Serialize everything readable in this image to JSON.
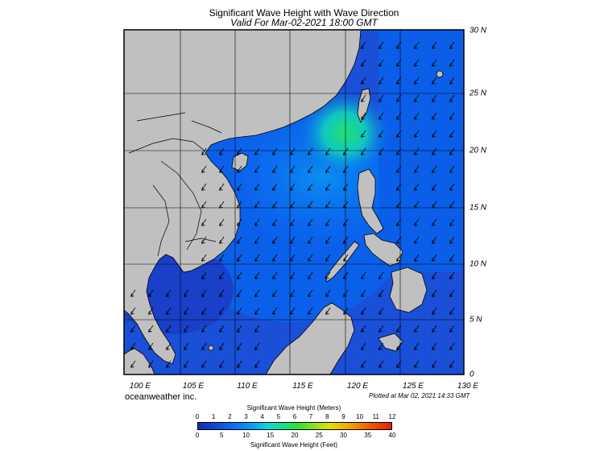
{
  "title": "Significant Wave Height with Wave Direction",
  "subtitle": "Valid For Mar-02-2021 18:00 GMT",
  "lon_labels": [
    "100 E",
    "105 E",
    "110 E",
    "115 E",
    "120 E",
    "125 E",
    "130 E"
  ],
  "lat_labels": [
    "30 N",
    "25 N",
    "20 N",
    "15 N",
    "10 N",
    "5 N",
    "0"
  ],
  "company": "oceanweather inc.",
  "plotted": "Plotted at Mar 02, 2021 14:33 GMT",
  "colorbar": {
    "title_meters": "Significant Wave Height (Meters)",
    "title_feet": "Significant Wave Height (Feet)",
    "ticks_meters": [
      "0",
      "1",
      "2",
      "3",
      "4",
      "5",
      "6",
      "7",
      "8",
      "9",
      "10",
      "11",
      "12"
    ],
    "ticks_feet": [
      "0",
      "5",
      "10",
      "15",
      "20",
      "25",
      "30",
      "35",
      "40"
    ],
    "range_meters": [
      0,
      12
    ],
    "range_feet": [
      0,
      40
    ]
  },
  "colors": {
    "land": "#c0c0c0",
    "sea_low": "#1a4fd8",
    "sea_mid": "#0a6cf5",
    "sea_high": "#18e08a",
    "arrow": "#000000"
  },
  "map_extent": {
    "lon_min": 100,
    "lon_max": 130,
    "lat_min": 0,
    "lat_max": 30
  },
  "wave_direction": "from northeast toward southwest"
}
